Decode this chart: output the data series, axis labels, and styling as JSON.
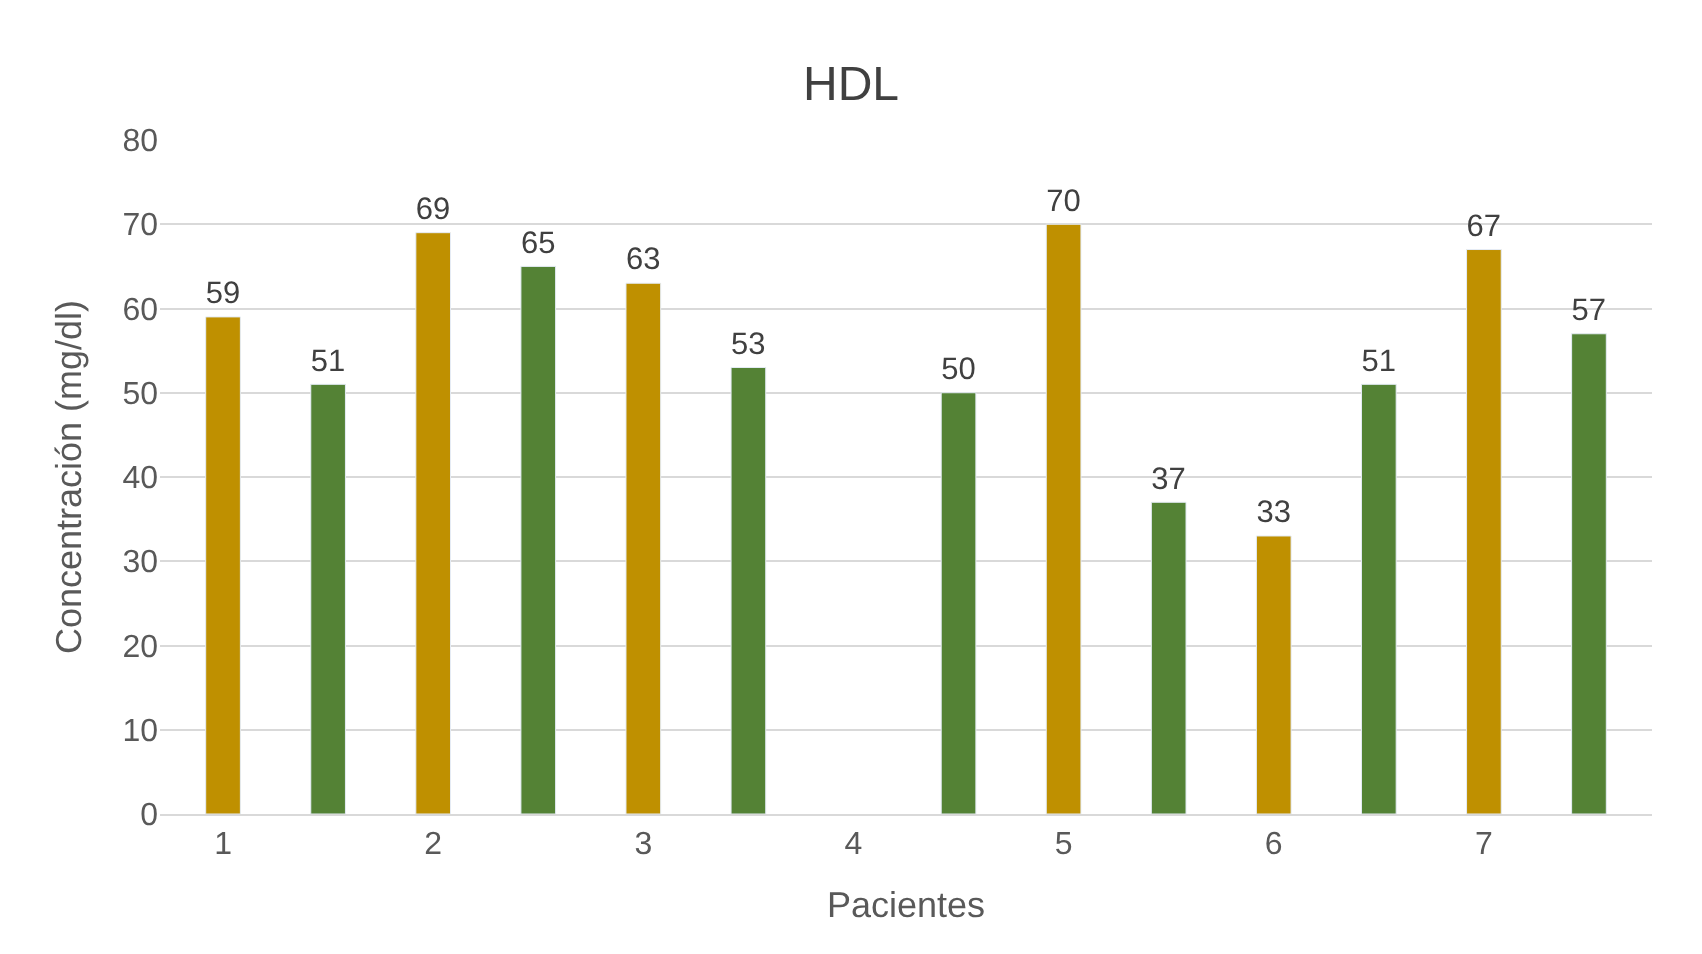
{
  "chart_data": {
    "type": "bar",
    "title": "HDL",
    "xlabel": "Pacientes",
    "ylabel": "Concentración (mg/dl)",
    "categories": [
      "1",
      null,
      "2",
      null,
      "3",
      null,
      "4",
      null,
      "5",
      null,
      "6",
      null,
      "7",
      null
    ],
    "values": [
      59,
      51,
      69,
      65,
      63,
      53,
      null,
      50,
      70,
      37,
      33,
      51,
      67,
      57
    ],
    "colors": [
      "#bf9000",
      "#548235",
      "#bf9000",
      "#548235",
      "#bf9000",
      "#548235",
      "#bf9000",
      "#548235",
      "#bf9000",
      "#548235",
      "#bf9000",
      "#548235",
      "#bf9000",
      "#548235"
    ],
    "ylim": [
      0,
      80
    ],
    "yticks": [
      0,
      10,
      20,
      30,
      40,
      50,
      60,
      70,
      80
    ],
    "grid": "y",
    "data_labels": true
  }
}
